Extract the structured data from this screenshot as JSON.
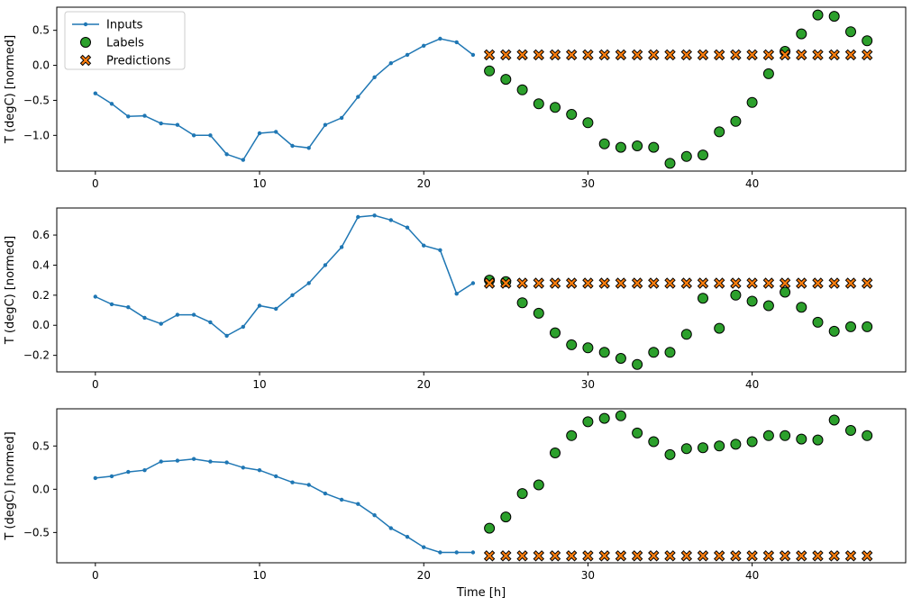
{
  "figure": {
    "background": "#ffffff",
    "axis_color": "#000000",
    "xlabel": "Time [h]",
    "ylabel": "T (degC) [normed]",
    "legend": {
      "position": "upper-left",
      "border_color": "#cccccc",
      "items": [
        {
          "label": "Inputs",
          "marker": "line-dot",
          "color": "#1f77b4"
        },
        {
          "label": "Labels",
          "marker": "circle",
          "color": "#2ca02c"
        },
        {
          "label": "Predictions",
          "marker": "x-filled",
          "color": "#ff7f0e"
        }
      ]
    }
  },
  "chart_data": [
    {
      "type": "line",
      "title": "",
      "xlabel": "",
      "ylabel": "T (degC) [normed]",
      "xlim": [
        -2.35,
        49.35
      ],
      "ylim": [
        -1.51,
        0.83
      ],
      "xticks": [
        0,
        10,
        20,
        30,
        40
      ],
      "yticks": [
        0.5,
        0.0,
        -0.5,
        -1.0
      ],
      "grid": false,
      "series": [
        {
          "name": "Inputs",
          "type": "line",
          "color": "#1f77b4",
          "x": [
            0,
            1,
            2,
            3,
            4,
            5,
            6,
            7,
            8,
            9,
            10,
            11,
            12,
            13,
            14,
            15,
            16,
            17,
            18,
            19,
            20,
            21,
            22,
            23
          ],
          "y": [
            -0.4,
            -0.55,
            -0.73,
            -0.72,
            -0.83,
            -0.85,
            -1.0,
            -1.0,
            -1.27,
            -1.35,
            -0.97,
            -0.95,
            -1.15,
            -1.18,
            -0.85,
            -0.75,
            -0.45,
            -0.17,
            0.03,
            0.15,
            0.28,
            0.38,
            0.33,
            0.15
          ]
        },
        {
          "name": "Labels",
          "type": "circle",
          "color": "#2ca02c",
          "edge_color": "#000000",
          "x": [
            24,
            25,
            26,
            27,
            28,
            29,
            30,
            31,
            32,
            33,
            34,
            35,
            36,
            37,
            38,
            39,
            40,
            41,
            42,
            43,
            44,
            45,
            46,
            47
          ],
          "y": [
            -0.08,
            -0.2,
            -0.35,
            -0.55,
            -0.6,
            -0.7,
            -0.82,
            -1.12,
            -1.17,
            -1.15,
            -1.17,
            -1.4,
            -1.3,
            -1.28,
            -0.95,
            -0.8,
            -0.53,
            -0.12,
            0.2,
            0.45,
            0.72,
            0.7,
            0.48,
            0.35
          ]
        },
        {
          "name": "Predictions",
          "type": "x",
          "color": "#ff7f0e",
          "edge_color": "#000000",
          "x": [
            24,
            25,
            26,
            27,
            28,
            29,
            30,
            31,
            32,
            33,
            34,
            35,
            36,
            37,
            38,
            39,
            40,
            41,
            42,
            43,
            44,
            45,
            46,
            47
          ],
          "y": [
            0.15,
            0.15,
            0.15,
            0.15,
            0.15,
            0.15,
            0.15,
            0.15,
            0.15,
            0.15,
            0.15,
            0.15,
            0.15,
            0.15,
            0.15,
            0.15,
            0.15,
            0.15,
            0.15,
            0.15,
            0.15,
            0.15,
            0.15,
            0.15
          ]
        }
      ]
    },
    {
      "type": "line",
      "title": "",
      "xlabel": "",
      "ylabel": "T (degC) [normed]",
      "xlim": [
        -2.35,
        49.35
      ],
      "ylim": [
        -0.31,
        0.78
      ],
      "xticks": [
        0,
        10,
        20,
        30,
        40
      ],
      "yticks": [
        0.6,
        0.4,
        0.2,
        0.0,
        -0.2
      ],
      "grid": false,
      "series": [
        {
          "name": "Inputs",
          "type": "line",
          "color": "#1f77b4",
          "x": [
            0,
            1,
            2,
            3,
            4,
            5,
            6,
            7,
            8,
            9,
            10,
            11,
            12,
            13,
            14,
            15,
            16,
            17,
            18,
            19,
            20,
            21,
            22,
            23
          ],
          "y": [
            0.19,
            0.14,
            0.12,
            0.05,
            0.01,
            0.07,
            0.07,
            0.02,
            -0.07,
            -0.01,
            0.13,
            0.11,
            0.2,
            0.28,
            0.4,
            0.52,
            0.72,
            0.73,
            0.7,
            0.65,
            0.53,
            0.5,
            0.21,
            0.28
          ]
        },
        {
          "name": "Labels",
          "type": "circle",
          "color": "#2ca02c",
          "edge_color": "#000000",
          "x": [
            24,
            25,
            26,
            27,
            28,
            29,
            30,
            31,
            32,
            33,
            34,
            35,
            36,
            37,
            38,
            39,
            40,
            41,
            42,
            43,
            44,
            45,
            46,
            47
          ],
          "y": [
            0.3,
            0.29,
            0.15,
            0.08,
            -0.05,
            -0.13,
            -0.15,
            -0.18,
            -0.22,
            -0.26,
            -0.18,
            -0.18,
            -0.06,
            0.18,
            -0.02,
            0.2,
            0.16,
            0.13,
            0.22,
            0.12,
            0.02,
            -0.04,
            -0.01,
            -0.01
          ]
        },
        {
          "name": "Predictions",
          "type": "x",
          "color": "#ff7f0e",
          "edge_color": "#000000",
          "x": [
            24,
            25,
            26,
            27,
            28,
            29,
            30,
            31,
            32,
            33,
            34,
            35,
            36,
            37,
            38,
            39,
            40,
            41,
            42,
            43,
            44,
            45,
            46,
            47
          ],
          "y": [
            0.28,
            0.28,
            0.28,
            0.28,
            0.28,
            0.28,
            0.28,
            0.28,
            0.28,
            0.28,
            0.28,
            0.28,
            0.28,
            0.28,
            0.28,
            0.28,
            0.28,
            0.28,
            0.28,
            0.28,
            0.28,
            0.28,
            0.28,
            0.28
          ]
        }
      ]
    },
    {
      "type": "line",
      "title": "",
      "xlabel": "Time [h]",
      "ylabel": "T (degC) [normed]",
      "xlim": [
        -2.35,
        49.35
      ],
      "ylim": [
        -0.85,
        0.93
      ],
      "xticks": [
        0,
        10,
        20,
        30,
        40
      ],
      "yticks": [
        0.5,
        0.0,
        -0.5
      ],
      "grid": false,
      "series": [
        {
          "name": "Inputs",
          "type": "line",
          "color": "#1f77b4",
          "x": [
            0,
            1,
            2,
            3,
            4,
            5,
            6,
            7,
            8,
            9,
            10,
            11,
            12,
            13,
            14,
            15,
            16,
            17,
            18,
            19,
            20,
            21,
            22,
            23
          ],
          "y": [
            0.13,
            0.15,
            0.2,
            0.22,
            0.32,
            0.33,
            0.35,
            0.32,
            0.31,
            0.25,
            0.22,
            0.15,
            0.08,
            0.05,
            -0.05,
            -0.12,
            -0.17,
            -0.3,
            -0.45,
            -0.55,
            -0.67,
            -0.73,
            -0.73,
            -0.73
          ]
        },
        {
          "name": "Labels",
          "type": "circle",
          "color": "#2ca02c",
          "edge_color": "#000000",
          "x": [
            24,
            25,
            26,
            27,
            28,
            29,
            30,
            31,
            32,
            33,
            34,
            35,
            36,
            37,
            38,
            39,
            40,
            41,
            42,
            43,
            44,
            45,
            46,
            47
          ],
          "y": [
            -0.45,
            -0.32,
            -0.05,
            0.05,
            0.42,
            0.62,
            0.78,
            0.82,
            0.85,
            0.65,
            0.55,
            0.4,
            0.47,
            0.48,
            0.5,
            0.52,
            0.55,
            0.62,
            0.62,
            0.58,
            0.57,
            0.8,
            0.68,
            0.62
          ]
        },
        {
          "name": "Predictions",
          "type": "x",
          "color": "#ff7f0e",
          "edge_color": "#000000",
          "x": [
            24,
            25,
            26,
            27,
            28,
            29,
            30,
            31,
            32,
            33,
            34,
            35,
            36,
            37,
            38,
            39,
            40,
            41,
            42,
            43,
            44,
            45,
            46,
            47
          ],
          "y": [
            -0.77,
            -0.77,
            -0.77,
            -0.77,
            -0.77,
            -0.77,
            -0.77,
            -0.77,
            -0.77,
            -0.77,
            -0.77,
            -0.77,
            -0.77,
            -0.77,
            -0.77,
            -0.77,
            -0.77,
            -0.77,
            -0.77,
            -0.77,
            -0.77,
            -0.77,
            -0.77,
            -0.77
          ]
        }
      ]
    }
  ]
}
